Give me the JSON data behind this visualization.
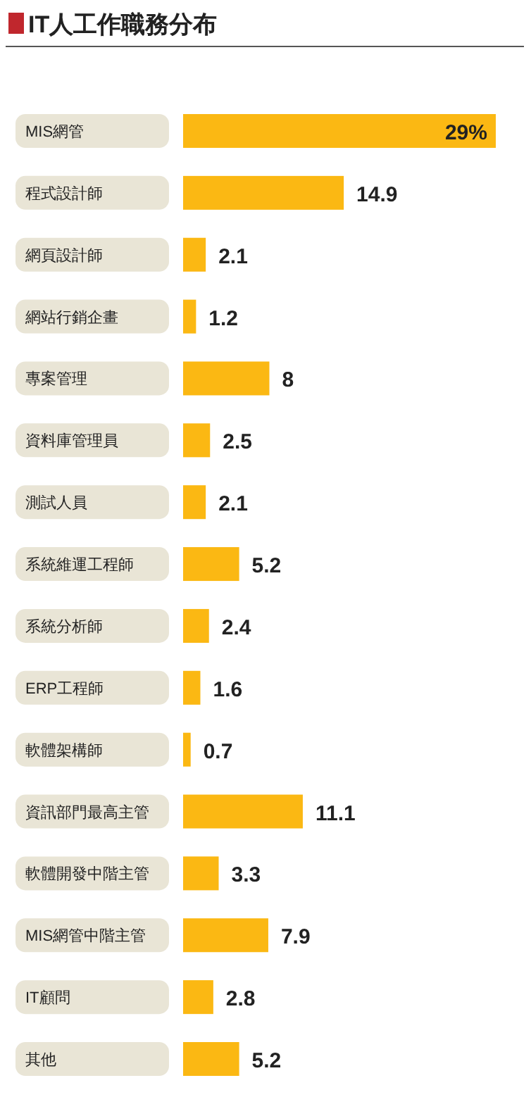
{
  "chart_data": {
    "type": "bar",
    "orientation": "horizontal",
    "title": "IT人工作職務分布",
    "categories": [
      "MIS網管",
      "程式設計師",
      "網頁設計師",
      "網站行銷企畫",
      "專案管理",
      "資料庫管理員",
      "測試人員",
      "系統維運工程師",
      "系統分析師",
      "ERP工程師",
      "軟體架構師",
      "資訊部門最高主管",
      "軟體開發中階主管",
      "MIS網管中階主管",
      "IT顧問",
      "其他"
    ],
    "values": [
      29,
      14.9,
      2.1,
      1.2,
      8,
      2.5,
      2.1,
      5.2,
      2.4,
      1.6,
      0.7,
      11.1,
      3.3,
      7.9,
      2.8,
      5.2
    ],
    "value_labels": [
      "29%",
      "14.9",
      "2.1",
      "1.2",
      "8",
      "2.5",
      "2.1",
      "5.2",
      "2.4",
      "1.6",
      "0.7",
      "11.1",
      "3.3",
      "7.9",
      "2.8",
      "5.2"
    ],
    "color": "#fbb813"
  }
}
